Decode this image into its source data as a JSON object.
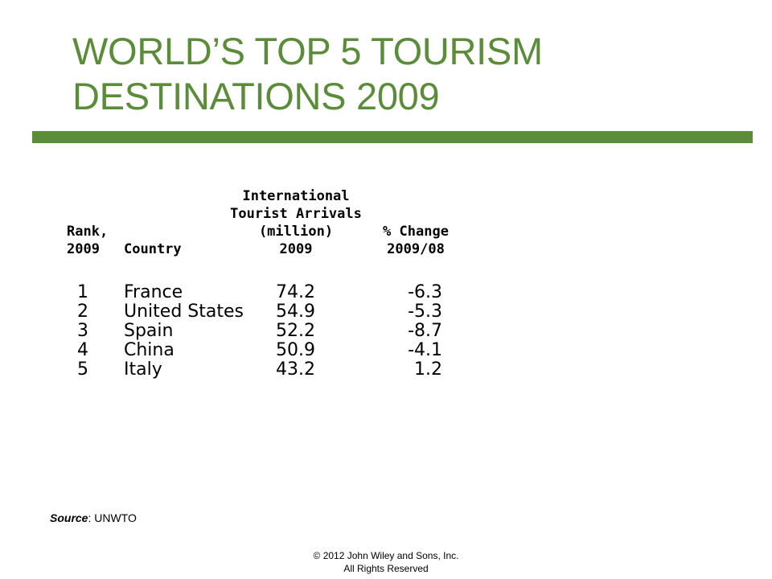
{
  "title": {
    "line1": "WORLD’S TOP 5 TOURISM",
    "line2": "DESTINATIONS 2009"
  },
  "colors": {
    "accent": "#5b8c3a",
    "text": "#000000",
    "background": "#ffffff"
  },
  "table": {
    "headers": {
      "rank": [
        "Rank,",
        "2009"
      ],
      "country": [
        "Country"
      ],
      "arrivals": [
        "International",
        "Tourist Arrivals",
        "(million)",
        "2009"
      ],
      "change": [
        "% Change",
        "2009/08"
      ]
    },
    "rows": [
      {
        "rank": "1",
        "country": "France",
        "arrivals": "74.2",
        "change": "-6.3"
      },
      {
        "rank": "2",
        "country": "United States",
        "arrivals": "54.9",
        "change": "-5.3"
      },
      {
        "rank": "3",
        "country": "Spain",
        "arrivals": "52.2",
        "change": "-8.7"
      },
      {
        "rank": "4",
        "country": "China",
        "arrivals": "50.9",
        "change": "-4.1"
      },
      {
        "rank": "5",
        "country": "Italy",
        "arrivals": "43.2",
        "change": "1.2"
      }
    ]
  },
  "source": {
    "label": "Source",
    "separator": ": ",
    "value": "UNWTO"
  },
  "footer": {
    "line1": "© 2012 John Wiley and Sons, Inc.",
    "line2": "All Rights Reserved"
  }
}
